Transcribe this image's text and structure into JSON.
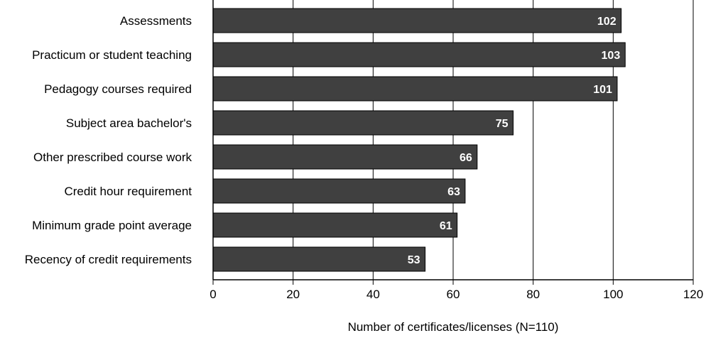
{
  "chart_data": {
    "type": "bar",
    "orientation": "horizontal",
    "title": "",
    "xlabel": "Number of certificates/licenses (N=110)",
    "ylabel": "",
    "categories": [
      "Assessments",
      "Practicum or student teaching",
      "Pedagogy courses required",
      "Subject area bachelor's",
      "Other prescribed course work",
      "Credit hour requirement",
      "Minimum grade point average",
      "Recency of credit requirements"
    ],
    "values": [
      102,
      103,
      101,
      75,
      66,
      63,
      61,
      53
    ],
    "xlim": [
      0,
      120
    ],
    "xticks": [
      0,
      20,
      40,
      60,
      80,
      100,
      120
    ],
    "grid": "vertical",
    "bar_color": "#404040",
    "bar_border_color": "#000000",
    "value_label_color": "#ffffff",
    "data_labels": "inside-end"
  }
}
